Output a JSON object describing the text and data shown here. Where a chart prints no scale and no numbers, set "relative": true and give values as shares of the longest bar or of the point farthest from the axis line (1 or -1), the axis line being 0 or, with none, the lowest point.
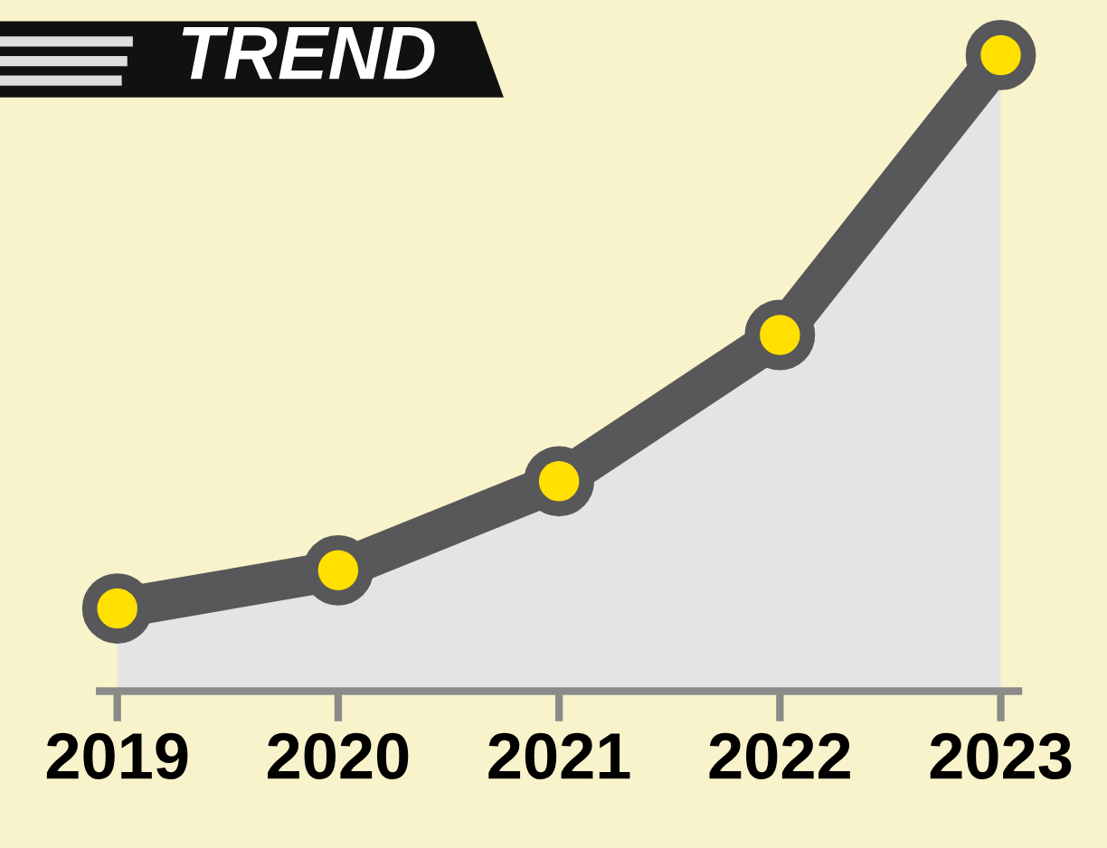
{
  "chart_data": {
    "type": "area",
    "title": "TREND",
    "relative": true,
    "categories": [
      "2019",
      "2020",
      "2021",
      "2022",
      "2023"
    ],
    "series": [
      {
        "color": "#58585a",
        "values": [
          0.13,
          0.19,
          0.33,
          0.56,
          1.0
        ]
      }
    ],
    "marker": "circle",
    "grid": false,
    "legend": false
  }
}
